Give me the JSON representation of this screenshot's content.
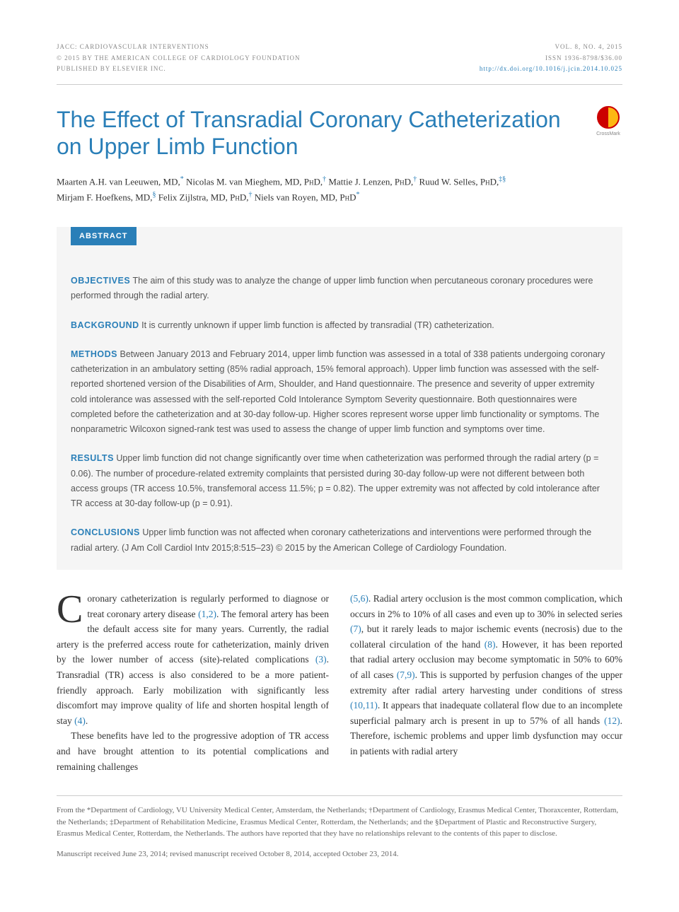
{
  "header": {
    "left": {
      "line1": "JACC: CARDIOVASCULAR INTERVENTIONS",
      "line2": "© 2015 BY THE AMERICAN COLLEGE OF CARDIOLOGY FOUNDATION",
      "line3": "PUBLISHED BY ELSEVIER INC."
    },
    "right": {
      "line1": "VOL. 8, NO. 4, 2015",
      "line2": "ISSN 1936-8798/$36.00",
      "doi": "http://dx.doi.org/10.1016/j.jcin.2014.10.025"
    }
  },
  "title": "The Effect of Transradial Coronary Catheterization on Upper Limb Function",
  "crossmark_label": "CrossMark",
  "authors_line1": "Maarten A.H. van Leeuwen, MD,* Nicolas M. van Mieghem, MD, PHD,† Mattie J. Lenzen, PHD,† Ruud W. Selles, PHD,‡§",
  "authors_line2": "Mirjam F. Hoefkens, MD,§ Felix Zijlstra, MD, PHD,† Niels van Royen, MD, PHD*",
  "abstract_label": "ABSTRACT",
  "abstract": {
    "objectives": {
      "heading": "OBJECTIVES",
      "text": "The aim of this study was to analyze the change of upper limb function when percutaneous coronary procedures were performed through the radial artery."
    },
    "background": {
      "heading": "BACKGROUND",
      "text": "It is currently unknown if upper limb function is affected by transradial (TR) catheterization."
    },
    "methods": {
      "heading": "METHODS",
      "text": "Between January 2013 and February 2014, upper limb function was assessed in a total of 338 patients undergoing coronary catheterization in an ambulatory setting (85% radial approach, 15% femoral approach). Upper limb function was assessed with the self-reported shortened version of the Disabilities of Arm, Shoulder, and Hand questionnaire. The presence and severity of upper extremity cold intolerance was assessed with the self-reported Cold Intolerance Symptom Severity questionnaire. Both questionnaires were completed before the catheterization and at 30-day follow-up. Higher scores represent worse upper limb functionality or symptoms. The nonparametric Wilcoxon signed-rank test was used to assess the change of upper limb function and symptoms over time."
    },
    "results": {
      "heading": "RESULTS",
      "text": "Upper limb function did not change significantly over time when catheterization was performed through the radial artery (p = 0.06). The number of procedure-related extremity complaints that persisted during 30-day follow-up were not different between both access groups (TR access 10.5%, transfemoral access 11.5%; p = 0.82). The upper extremity was not affected by cold intolerance after TR access at 30-day follow-up (p = 0.91)."
    },
    "conclusions": {
      "heading": "CONCLUSIONS",
      "text": "Upper limb function was not affected when coronary catheterizations and interventions were performed through the radial artery. (J Am Coll Cardiol Intv 2015;8:515–23) © 2015 by the American College of Cardiology Foundation."
    }
  },
  "body": {
    "col1_p1_first": "C",
    "col1_p1_rest": "oronary catheterization is regularly performed to diagnose or treat coronary artery disease ",
    "col1_p1_ref1": "(1,2)",
    "col1_p1_cont1": ". The femoral artery has been the default access site for many years. Currently, the radial artery is the preferred access route for catheterization, mainly driven by the lower number of access (site)-related complications ",
    "col1_p1_ref2": "(3)",
    "col1_p1_cont2": ". Transradial (TR) access is also considered to be a more patient-friendly approach. Early mobilization with significantly less discomfort may improve quality of life and shorten hospital length of stay ",
    "col1_p1_ref3": "(4)",
    "col1_p1_cont3": ".",
    "col1_p2": "These benefits have led to the progressive adoption of TR access and have brought attention to its potential complications and remaining challenges",
    "col2_ref1": "(5,6)",
    "col2_p1_a": ". Radial artery occlusion is the most common complication, which occurs in 2% to 10% of all cases and even up to 30% in selected series ",
    "col2_ref2": "(7)",
    "col2_p1_b": ", but it rarely leads to major ischemic events (necrosis) due to the collateral circulation of the hand ",
    "col2_ref3": "(8)",
    "col2_p1_c": ". However, it has been reported that radial artery occlusion may become symptomatic in 50% to 60% of all cases ",
    "col2_ref4": "(7,9)",
    "col2_p1_d": ". This is supported by perfusion changes of the upper extremity after radial artery harvesting under conditions of stress ",
    "col2_ref5": "(10,11)",
    "col2_p1_e": ". It appears that inadequate collateral flow due to an incomplete superficial palmary arch is present in up to 57% of all hands ",
    "col2_ref6": "(12)",
    "col2_p1_f": ". Therefore, ischemic problems and upper limb dysfunction may occur in patients with radial artery"
  },
  "affiliations": "From the *Department of Cardiology, VU University Medical Center, Amsterdam, the Netherlands; †Department of Cardiology, Erasmus Medical Center, Thoraxcenter, Rotterdam, the Netherlands; ‡Department of Rehabilitation Medicine, Erasmus Medical Center, Rotterdam, the Netherlands; and the §Department of Plastic and Reconstructive Surgery, Erasmus Medical Center, Rotterdam, the Netherlands. The authors have reported that they have no relationships relevant to the contents of this paper to disclose.",
  "manuscript": "Manuscript received June 23, 2014; revised manuscript received October 8, 2014, accepted October 23, 2014.",
  "colors": {
    "accent": "#2a7fb8",
    "text": "#333333",
    "muted": "#888888",
    "abstract_bg": "#f5f5f5"
  }
}
